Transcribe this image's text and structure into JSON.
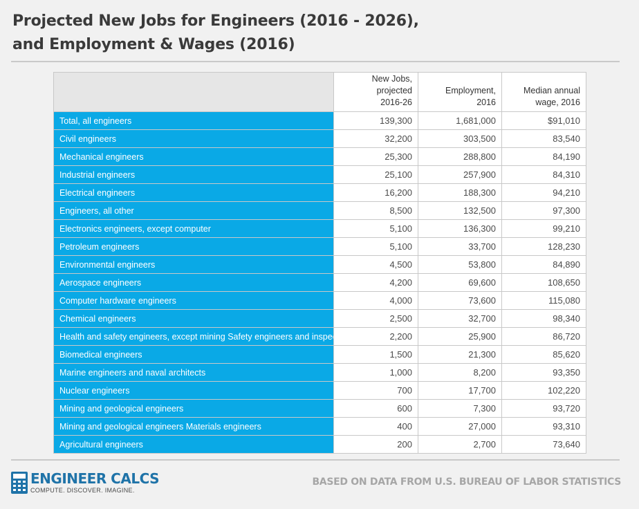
{
  "title": {
    "line1": "Projected New Jobs for Engineers (2016 - 2026),",
    "line2": "and Employment & Wages (2016)"
  },
  "colors": {
    "header_blue": "#0aa9e6",
    "brand_blue": "#1f73a8",
    "background": "#f1f1f1"
  },
  "table": {
    "headers": {
      "occupation": "",
      "new_jobs": [
        "New Jobs, projected",
        "2016-26"
      ],
      "employment": [
        "Employment,",
        "2016"
      ],
      "wage": [
        "Median annual",
        "wage, 2016"
      ]
    },
    "rows": [
      {
        "name": "Total, all engineers",
        "new_jobs": "139,300",
        "employment": "1,681,000",
        "wage": "$91,010"
      },
      {
        "name": "Civil engineers",
        "new_jobs": "32,200",
        "employment": "303,500",
        "wage": "83,540"
      },
      {
        "name": "Mechanical engineers",
        "new_jobs": "25,300",
        "employment": "288,800",
        "wage": "84,190"
      },
      {
        "name": "Industrial engineers",
        "new_jobs": "25,100",
        "employment": "257,900",
        "wage": "84,310"
      },
      {
        "name": "Electrical engineers",
        "new_jobs": "16,200",
        "employment": "188,300",
        "wage": "94,210"
      },
      {
        "name": "Engineers, all other",
        "new_jobs": "8,500",
        "employment": "132,500",
        "wage": "97,300"
      },
      {
        "name": "Electronics engineers, except computer",
        "new_jobs": "5,100",
        "employment": "136,300",
        "wage": "99,210"
      },
      {
        "name": "Petroleum engineers",
        "new_jobs": "5,100",
        "employment": "33,700",
        "wage": "128,230"
      },
      {
        "name": "Environmental engineers",
        "new_jobs": "4,500",
        "employment": "53,800",
        "wage": "84,890"
      },
      {
        "name": "Aerospace engineers",
        "new_jobs": "4,200",
        "employment": "69,600",
        "wage": "108,650"
      },
      {
        "name": "Computer hardware engineers",
        "new_jobs": "4,000",
        "employment": "73,600",
        "wage": "115,080"
      },
      {
        "name": "Chemical engineers",
        "new_jobs": "2,500",
        "employment": "32,700",
        "wage": "98,340"
      },
      {
        "name": "Health and safety engineers, except mining Safety engineers and inspectors",
        "new_jobs": "2,200",
        "employment": "25,900",
        "wage": "86,720"
      },
      {
        "name": "Biomedical engineers",
        "new_jobs": "1,500",
        "employment": "21,300",
        "wage": "85,620"
      },
      {
        "name": "Marine engineers and naval architects",
        "new_jobs": "1,000",
        "employment": "8,200",
        "wage": "93,350"
      },
      {
        "name": "Nuclear engineers",
        "new_jobs": "700",
        "employment": "17,700",
        "wage": "102,220"
      },
      {
        "name": "Mining and geological engineers",
        "new_jobs": "600",
        "employment": "7,300",
        "wage": "93,720"
      },
      {
        "name": "Mining and geological engineers Materials engineers",
        "new_jobs": "400",
        "employment": "27,000",
        "wage": "93,310"
      },
      {
        "name": "Agricultural engineers",
        "new_jobs": "200",
        "employment": "2,700",
        "wage": "73,640"
      }
    ]
  },
  "footer": {
    "logo_icon": "calculator-icon",
    "brand": "ENGINEER CALCS",
    "tagline": "COMPUTE. DISCOVER. IMAGINE.",
    "source": "BASED ON DATA FROM U.S. BUREAU OF LABOR STATISTICS"
  }
}
